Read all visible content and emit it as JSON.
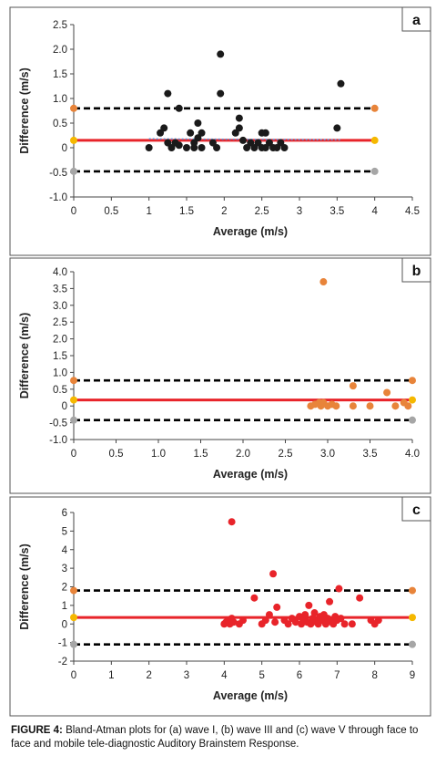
{
  "chart_data": [
    {
      "type": "scatter",
      "panel": "a",
      "xlabel": "Average (m/s)",
      "ylabel": "Difference (m/s)",
      "xlim": [
        0,
        4.5
      ],
      "ylim": [
        -1.0,
        2.5
      ],
      "xticks": [
        0,
        0.5,
        1,
        1.5,
        2,
        2.5,
        3,
        3.5,
        4,
        4.5
      ],
      "yticks": [
        -1.0,
        -0.5,
        0,
        0.5,
        1.0,
        1.5,
        2.0,
        2.5
      ],
      "xtick_labels": [
        "0",
        "0.5",
        "1",
        "1.5",
        "2",
        "2.5",
        "3",
        "3.5",
        "4",
        "4.5"
      ],
      "ytick_labels": [
        "-1.0",
        "-0.5",
        "0",
        "0.5",
        "1.0",
        "1.5",
        "2.0",
        "2.5"
      ],
      "point_color": "#1a1a1a",
      "mean_bias": 0.15,
      "upper_loa": 0.8,
      "lower_loa": -0.48,
      "trend_line": {
        "x": [
          1.0,
          3.55
        ],
        "y": [
          0.18,
          0.16
        ],
        "color": "#5b8fd6"
      },
      "points": [
        [
          1.0,
          0.0
        ],
        [
          1.15,
          0.3
        ],
        [
          1.2,
          0.4
        ],
        [
          1.25,
          1.1
        ],
        [
          1.25,
          0.1
        ],
        [
          1.3,
          0.0
        ],
        [
          1.35,
          0.1
        ],
        [
          1.4,
          0.8
        ],
        [
          1.4,
          0.05
        ],
        [
          1.5,
          0.0
        ],
        [
          1.55,
          0.3
        ],
        [
          1.6,
          0.1
        ],
        [
          1.6,
          0.0
        ],
        [
          1.65,
          0.5
        ],
        [
          1.65,
          0.2
        ],
        [
          1.7,
          0.0
        ],
        [
          1.7,
          0.3
        ],
        [
          1.85,
          0.1
        ],
        [
          1.9,
          0.0
        ],
        [
          1.95,
          1.9
        ],
        [
          1.95,
          1.1
        ],
        [
          2.15,
          0.3
        ],
        [
          2.2,
          0.6
        ],
        [
          2.2,
          0.4
        ],
        [
          2.25,
          0.15
        ],
        [
          2.3,
          0.0
        ],
        [
          2.35,
          0.1
        ],
        [
          2.4,
          0.0
        ],
        [
          2.45,
          0.1
        ],
        [
          2.5,
          0.0
        ],
        [
          2.5,
          0.3
        ],
        [
          2.55,
          0.0
        ],
        [
          2.55,
          0.3
        ],
        [
          2.6,
          0.1
        ],
        [
          2.65,
          0.0
        ],
        [
          2.7,
          0.0
        ],
        [
          2.75,
          0.1
        ],
        [
          2.8,
          0.0
        ],
        [
          3.5,
          0.4
        ],
        [
          3.55,
          1.3
        ]
      ]
    },
    {
      "type": "scatter",
      "panel": "b",
      "xlabel": "Average (m/s)",
      "ylabel": "Difference (m/s)",
      "xlim": [
        0,
        4.0
      ],
      "ylim": [
        -1.0,
        4.0
      ],
      "xticks": [
        0,
        0.5,
        1.0,
        1.5,
        2.0,
        2.5,
        3.0,
        3.5,
        4.0
      ],
      "yticks": [
        -1.0,
        -0.5,
        0,
        0.5,
        1.0,
        1.5,
        2.0,
        2.5,
        3.0,
        3.5,
        4.0
      ],
      "xtick_labels": [
        "0",
        "0.5",
        "1.0",
        "1.5",
        "2.0",
        "2.5",
        "3.0",
        "3.5",
        "4.0"
      ],
      "ytick_labels": [
        "-1.0",
        "-0.5",
        "0",
        "0.5",
        "1.0",
        "1.5",
        "2.0",
        "2.5",
        "3.0",
        "3.5",
        "4.0"
      ],
      "point_color": "#e8843a",
      "mean_bias": 0.18,
      "upper_loa": 0.76,
      "lower_loa": -0.42,
      "points": [
        [
          2.8,
          0.0
        ],
        [
          2.85,
          0.05
        ],
        [
          2.9,
          0.1
        ],
        [
          2.92,
          0.0
        ],
        [
          2.95,
          3.7
        ],
        [
          2.95,
          0.1
        ],
        [
          3.0,
          0.0
        ],
        [
          3.05,
          0.05
        ],
        [
          3.1,
          0.0
        ],
        [
          3.3,
          0.6
        ],
        [
          3.3,
          0.0
        ],
        [
          3.5,
          0.0
        ],
        [
          3.7,
          0.4
        ],
        [
          3.8,
          0.0
        ],
        [
          3.9,
          0.1
        ],
        [
          3.95,
          0.0
        ]
      ]
    },
    {
      "type": "scatter",
      "panel": "c",
      "xlabel": "Average (m/s)",
      "ylabel": "Difference (m/s)",
      "xlim": [
        0,
        9
      ],
      "ylim": [
        -2,
        6
      ],
      "xticks": [
        0,
        1,
        2,
        3,
        4,
        5,
        6,
        7,
        8,
        9
      ],
      "yticks": [
        -2,
        -1,
        0,
        1,
        2,
        3,
        4,
        5,
        6
      ],
      "xtick_labels": [
        "0",
        "1",
        "2",
        "3",
        "4",
        "5",
        "6",
        "7",
        "8",
        "9"
      ],
      "ytick_labels": [
        "-2",
        "-1",
        "0",
        "1",
        "2",
        "3",
        "4",
        "5",
        "6"
      ],
      "point_color": "#e8242a",
      "mean_bias": 0.35,
      "upper_loa": 1.8,
      "lower_loa": -1.1,
      "points": [
        [
          4.0,
          0.0
        ],
        [
          4.05,
          0.1
        ],
        [
          4.1,
          0.2
        ],
        [
          4.15,
          0.0
        ],
        [
          4.2,
          5.5
        ],
        [
          4.2,
          0.3
        ],
        [
          4.25,
          0.1
        ],
        [
          4.4,
          0.0
        ],
        [
          4.5,
          0.2
        ],
        [
          4.8,
          1.4
        ],
        [
          5.0,
          0.0
        ],
        [
          5.1,
          0.2
        ],
        [
          5.2,
          0.5
        ],
        [
          5.3,
          2.7
        ],
        [
          5.35,
          0.1
        ],
        [
          5.4,
          0.9
        ],
        [
          5.6,
          0.2
        ],
        [
          5.7,
          0.0
        ],
        [
          5.8,
          0.3
        ],
        [
          5.9,
          0.1
        ],
        [
          6.0,
          0.4
        ],
        [
          6.05,
          0.0
        ],
        [
          6.1,
          0.2
        ],
        [
          6.15,
          0.5
        ],
        [
          6.2,
          0.1
        ],
        [
          6.25,
          1.0
        ],
        [
          6.3,
          0.0
        ],
        [
          6.35,
          0.3
        ],
        [
          6.4,
          0.6
        ],
        [
          6.45,
          0.1
        ],
        [
          6.5,
          0.0
        ],
        [
          6.55,
          0.4
        ],
        [
          6.6,
          0.2
        ],
        [
          6.65,
          0.5
        ],
        [
          6.7,
          0.0
        ],
        [
          6.75,
          0.3
        ],
        [
          6.8,
          1.2
        ],
        [
          6.85,
          0.1
        ],
        [
          6.9,
          0.0
        ],
        [
          6.95,
          0.4
        ],
        [
          7.0,
          0.2
        ],
        [
          7.05,
          1.9
        ],
        [
          7.1,
          0.3
        ],
        [
          7.2,
          0.0
        ],
        [
          7.4,
          0.0
        ],
        [
          7.6,
          1.4
        ],
        [
          7.9,
          0.2
        ],
        [
          8.0,
          0.0
        ],
        [
          8.1,
          0.2
        ]
      ]
    }
  ],
  "series_colors": {
    "mean_line": "#e8242a",
    "loa_line": "#000000",
    "upper_marker": "#e8843a",
    "mean_marker": "#f5b800",
    "lower_marker": "#a6a6a6"
  },
  "caption": {
    "label": "FIGURE 4:",
    "text": "Bland-Atman plots for (a) wave I, (b) wave III and (c) wave V through face to face and mobile tele-diagnostic Auditory Brainstem Response."
  }
}
